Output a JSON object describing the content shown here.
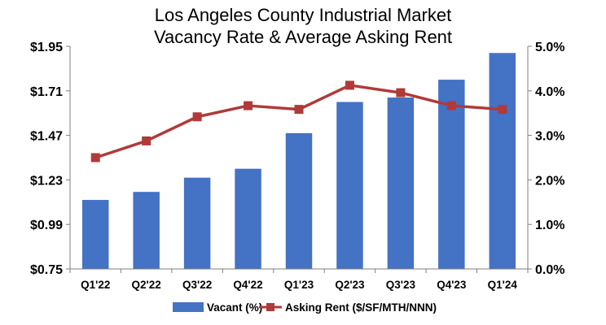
{
  "chart_data": {
    "type": "bar",
    "title": [
      "Los Angeles County Industrial Market",
      "Vacancy Rate & Average Asking Rent"
    ],
    "categories": [
      "Q1'22",
      "Q2'22",
      "Q3'22",
      "Q4'22",
      "Q1'23",
      "Q2'23",
      "Q3'23",
      "Q4'23",
      "Q1'24"
    ],
    "left_axis": {
      "ticks": [
        "$0.75",
        "$0.99",
        "$1.23",
        "$1.47",
        "$1.71",
        "$1.95"
      ],
      "range": [
        0.75,
        1.95
      ]
    },
    "right_axis": {
      "ticks": [
        "0.0%",
        "1.0%",
        "2.0%",
        "3.0%",
        "4.0%",
        "5.0%"
      ],
      "range": [
        0,
        5.0
      ]
    },
    "series": [
      {
        "name": "Vacant (%)",
        "type": "bar",
        "axis": "right",
        "color": "#4472C4",
        "values": [
          1.55,
          1.73,
          2.05,
          2.25,
          3.05,
          3.75,
          3.85,
          4.25,
          4.85
        ]
      },
      {
        "name": "Asking Rent ($/SF/MTH/NNN)",
        "type": "line",
        "axis": "left",
        "color": "#B03A3A",
        "values": [
          1.35,
          1.44,
          1.57,
          1.63,
          1.61,
          1.74,
          1.7,
          1.63,
          1.61
        ]
      }
    ],
    "grid": false,
    "legend": "bottom"
  }
}
